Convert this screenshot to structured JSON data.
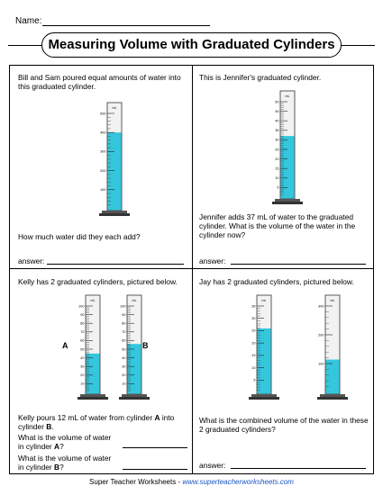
{
  "header": {
    "name_label": "Name:"
  },
  "title": "Measuring Volume with Graduated Cylinders",
  "q1": {
    "text": "Bill and Sam poured equal amounts of water into this graduated cylinder.",
    "question": "How much water did they each add?",
    "answer_label": "answer:",
    "cylinder": {
      "unit": "mL",
      "ticks": [
        "500",
        "400",
        "300",
        "200",
        "100"
      ],
      "fill_fraction": 0.8
    }
  },
  "q2": {
    "text": "This is Jennifer's graduated cylinder.",
    "question": "Jennifer adds 37 mL of water to the graduated cylinder.  What is the volume of the water in the cylinder now?",
    "answer_label": "answer:",
    "cylinder": {
      "unit": "mL",
      "ticks": [
        "50",
        "45",
        "40",
        "35",
        "30",
        "25",
        "20",
        "15",
        "10",
        "5"
      ],
      "fill_fraction": 0.64
    }
  },
  "q3": {
    "text": "Kelly has 2 graduated cylinders, pictured below.",
    "cyl_a_label": "A",
    "cyl_b_label": "B",
    "cyl_a": {
      "unit": "mL",
      "ticks": [
        "100",
        "90",
        "80",
        "70",
        "60",
        "50",
        "40",
        "30",
        "20",
        "10"
      ],
      "fill_fraction": 0.45
    },
    "cyl_b": {
      "unit": "mL",
      "ticks": [
        "100",
        "90",
        "80",
        "70",
        "60",
        "50",
        "40",
        "30",
        "20",
        "10"
      ],
      "fill_fraction": 0.56
    },
    "instruction_1": "Kelly pours 12 mL of water from cylinder ",
    "instruction_a": "A",
    "instruction_2": " into cylinder ",
    "instruction_b": "B",
    "instruction_3": ".",
    "ask_a_1": "What is the volume of water in cylinder ",
    "ask_a_2": "?",
    "ask_b_1": "What is the volume of water in cylinder ",
    "ask_b_2": "?"
  },
  "q4": {
    "text": "Jay has 2 graduated cylinders, pictured below.",
    "cyl_left": {
      "unit": "mL",
      "ticks": [
        "35",
        "30",
        "25",
        "20",
        "15",
        "10",
        "5"
      ],
      "fill_fraction": 0.74
    },
    "cyl_right": {
      "unit": "mL",
      "ticks": [
        "300",
        "200",
        "100"
      ],
      "fill_fraction": 0.38
    },
    "question": "What is the combined volume of the water in these 2 graduated cylinders?",
    "answer_label": "answer:"
  },
  "footer": {
    "text": "Super Teacher Worksheets - ",
    "url": "www.superteacherworksheets.com"
  },
  "colors": {
    "water": "#33c6dc",
    "tube": "#f2f2f2",
    "base": "#555555"
  }
}
